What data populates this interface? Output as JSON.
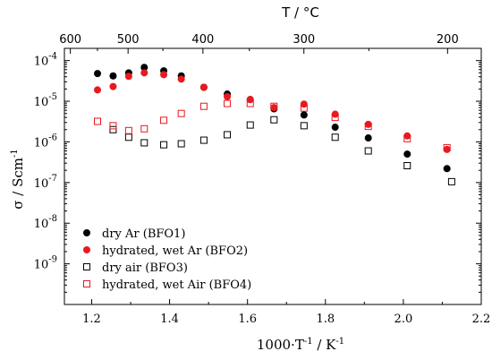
{
  "chart_data": {
    "type": "scatter",
    "x_axis": {
      "label_main": "1000·T",
      "label_exp": "-1",
      "label_unit": " / K",
      "label_unit_exp": "-1",
      "range": [
        1.13,
        2.2
      ],
      "ticks": [
        1.2,
        1.4,
        1.6,
        1.8,
        2.0,
        2.2
      ],
      "tick_labels": [
        "1.2",
        "1.4",
        "1.6",
        "1.8",
        "2.0",
        "2.2"
      ]
    },
    "y_axis": {
      "label_main": "σ / Scm",
      "label_exp": "-1",
      "scale": "log",
      "range": [
        1e-10,
        0.0002
      ],
      "ticks": [
        -9,
        -8,
        -7,
        -6,
        -5,
        -4
      ],
      "tick_label_base": "10"
    },
    "top_axis": {
      "label": "T / °C",
      "ticks": [
        600,
        500,
        400,
        300,
        200
      ],
      "tick_labels": [
        "600",
        "500",
        "400",
        "300",
        "200"
      ]
    },
    "legend_position": "lower-left",
    "series": [
      {
        "name": "dry Ar (BFO1)",
        "marker": "filled-circle",
        "color": "#000000",
        "points": [
          [
            1.215,
            4.8e-05
          ],
          [
            1.255,
            4.2e-05
          ],
          [
            1.295,
            5e-05
          ],
          [
            1.335,
            6.8e-05
          ],
          [
            1.385,
            5.6e-05
          ],
          [
            1.43,
            4.2e-05
          ],
          [
            1.488,
            2.2e-05
          ],
          [
            1.548,
            1.5e-05
          ],
          [
            1.607,
            1.1e-05
          ],
          [
            1.668,
            6.5e-06
          ],
          [
            1.745,
            4.6e-06
          ],
          [
            1.825,
            2.3e-06
          ],
          [
            1.91,
            1.25e-06
          ],
          [
            2.01,
            5e-07
          ],
          [
            2.112,
            2.2e-07
          ]
        ]
      },
      {
        "name": "hydrated, wet Ar (BFO2)",
        "marker": "filled-circle",
        "color": "#e8191f",
        "points": [
          [
            1.215,
            1.9e-05
          ],
          [
            1.255,
            2.3e-05
          ],
          [
            1.295,
            4.1e-05
          ],
          [
            1.335,
            5e-05
          ],
          [
            1.385,
            4.5e-05
          ],
          [
            1.43,
            3.5e-05
          ],
          [
            1.488,
            2.2e-05
          ],
          [
            1.548,
            1.3e-05
          ],
          [
            1.607,
            1.1e-05
          ],
          [
            1.668,
            7e-06
          ],
          [
            1.745,
            8.5e-06
          ],
          [
            1.825,
            4.8e-06
          ],
          [
            1.91,
            2.7e-06
          ],
          [
            2.01,
            1.4e-06
          ],
          [
            2.112,
            6.5e-07
          ]
        ]
      },
      {
        "name": "dry air (BFO3)",
        "marker": "open-square",
        "color": "#000000",
        "points": [
          [
            1.215,
            3.2e-06
          ],
          [
            1.255,
            2e-06
          ],
          [
            1.295,
            1.3e-06
          ],
          [
            1.335,
            9.5e-07
          ],
          [
            1.385,
            8.5e-07
          ],
          [
            1.43,
            9e-07
          ],
          [
            1.488,
            1.1e-06
          ],
          [
            1.548,
            1.5e-06
          ],
          [
            1.607,
            2.6e-06
          ],
          [
            1.668,
            3.5e-06
          ],
          [
            1.745,
            2.5e-06
          ],
          [
            1.825,
            1.3e-06
          ],
          [
            1.91,
            6e-07
          ],
          [
            2.01,
            2.6e-07
          ],
          [
            2.124,
            1.05e-07
          ]
        ]
      },
      {
        "name": "hydrated, wet Air (BFO4)",
        "marker": "open-square",
        "color": "#e8191f",
        "points": [
          [
            1.215,
            3.2e-06
          ],
          [
            1.255,
            2.5e-06
          ],
          [
            1.295,
            1.9e-06
          ],
          [
            1.335,
            2.1e-06
          ],
          [
            1.385,
            3.4e-06
          ],
          [
            1.43,
            5e-06
          ],
          [
            1.488,
            7.5e-06
          ],
          [
            1.548,
            8.8e-06
          ],
          [
            1.607,
            8.8e-06
          ],
          [
            1.668,
            7.5e-06
          ],
          [
            1.745,
            6.8e-06
          ],
          [
            1.825,
            4e-06
          ],
          [
            1.91,
            2.4e-06
          ],
          [
            2.01,
            1.2e-06
          ],
          [
            2.112,
            7.2e-07
          ]
        ]
      }
    ]
  }
}
